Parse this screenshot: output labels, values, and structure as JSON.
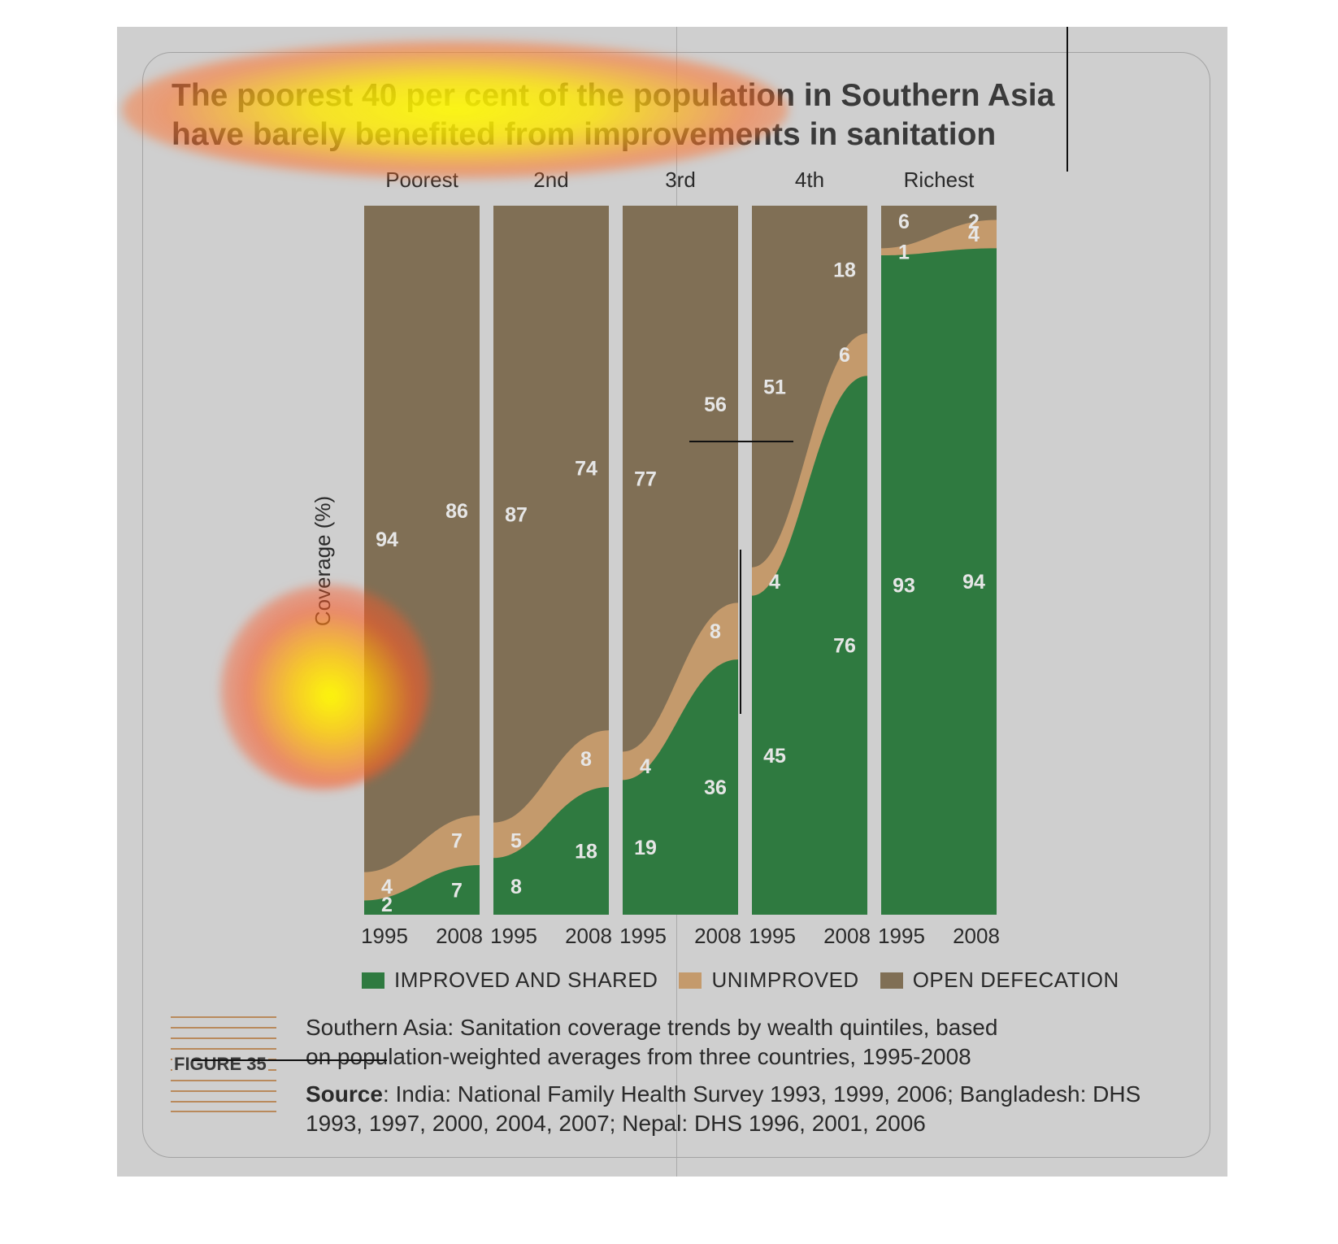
{
  "title": {
    "line1": "The poorest 40 per cent of the population in Southern Asia",
    "line2": "have barely benefited from improvements in sanitation"
  },
  "colors": {
    "improved": "#2f7a40",
    "unimproved": "#c49a6c",
    "open_defecation": "#806f55",
    "panel": "#cfcfcf",
    "heat_core": "#fff200",
    "heat_edge": "#e8403c"
  },
  "chart_data": {
    "type": "area",
    "ylabel": "Coverage (%)",
    "ylim": [
      0,
      100
    ],
    "quintiles": [
      {
        "name": "Poorest",
        "years": [
          "1995",
          "2008"
        ],
        "improved": [
          2,
          7
        ],
        "unimproved": [
          4,
          7
        ],
        "open_defecation": [
          94,
          86
        ]
      },
      {
        "name": "2nd",
        "years": [
          "1995",
          "2008"
        ],
        "improved": [
          8,
          18
        ],
        "unimproved": [
          5,
          8
        ],
        "open_defecation": [
          87,
          74
        ]
      },
      {
        "name": "3rd",
        "years": [
          "1995",
          "2008"
        ],
        "improved": [
          19,
          36
        ],
        "unimproved": [
          4,
          8
        ],
        "open_defecation": [
          77,
          56
        ]
      },
      {
        "name": "4th",
        "years": [
          "1995",
          "2008"
        ],
        "improved": [
          45,
          76
        ],
        "unimproved": [
          4,
          6
        ],
        "open_defecation": [
          51,
          18
        ]
      },
      {
        "name": "Richest",
        "years": [
          "1995",
          "2008"
        ],
        "improved": [
          93,
          94
        ],
        "unimproved": [
          1,
          4
        ],
        "open_defecation": [
          6,
          2
        ]
      }
    ],
    "legend": [
      "IMPROVED AND SHARED",
      "UNIMPROVED",
      "OPEN DEFECATION"
    ],
    "legend_position": "bottom"
  },
  "figure": {
    "label": "FIGURE 35",
    "caption_line1": "Southern Asia: Sanitation coverage trends by wealth quintiles, based",
    "caption_line2": "on population-weighted averages from three countries, 1995-2008",
    "source_label": "Source",
    "source_text": ": India: National Family Health Survey 1993, 1999, 2006; Bangladesh: DHS 1993, 1997, 2000, 2004, 2007; Nepal: DHS 1996, 2001, 2006"
  }
}
